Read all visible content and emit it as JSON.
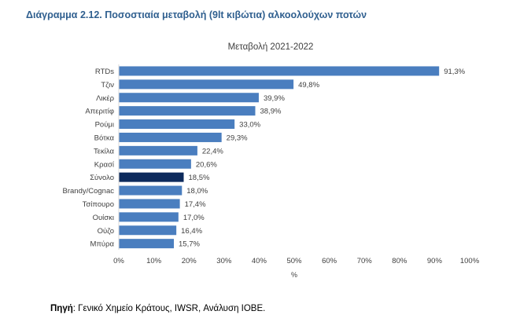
{
  "figure_title": "Διάγραμμα 2.12. Ποσοστιαία μεταβολή (9lt κιβώτια) αλκοολούχων ποτών",
  "source": {
    "label": "Πηγή",
    "text": ": Γενικό Χημείο Κράτους, IWSR, Ανάλυση ΙΟΒΕ."
  },
  "colors": {
    "bar": "#4a7ebf",
    "highlight": "#0d2a5c",
    "axis": "#d9d9d9",
    "text": "#404040"
  },
  "chart_data": {
    "type": "bar",
    "orientation": "horizontal",
    "title": "Μεταβολή 2021-2022",
    "xlabel": "%",
    "ylabel": "",
    "xlim": [
      0,
      100
    ],
    "x_ticks": [
      "0%",
      "10%",
      "20%",
      "30%",
      "40%",
      "50%",
      "60%",
      "70%",
      "80%",
      "90%",
      "100%"
    ],
    "x_tick_values": [
      0,
      10,
      20,
      30,
      40,
      50,
      60,
      70,
      80,
      90,
      100
    ],
    "grid": false,
    "categories": [
      "RTDs",
      "Τζιν",
      "Λικέρ",
      "Απεριτίφ",
      "Ρούμι",
      "Βότκα",
      "Τεκίλα",
      "Κρασί",
      "Σύνολο",
      "Brandy/Cognac",
      "Τσίπουρο",
      "Ουίσκι",
      "Ούζο",
      "Μπύρα"
    ],
    "values": [
      91.3,
      49.8,
      39.9,
      38.9,
      33.0,
      29.3,
      22.4,
      20.6,
      18.5,
      18.0,
      17.4,
      17.0,
      16.4,
      15.7
    ],
    "data_labels": [
      "91,3%",
      "49,8%",
      "39,9%",
      "38,9%",
      "33,0%",
      "29,3%",
      "22,4%",
      "20,6%",
      "18,5%",
      "18,0%",
      "17,4%",
      "17,0%",
      "16,4%",
      "15,7%"
    ],
    "highlight_category": "Σύνολο"
  }
}
